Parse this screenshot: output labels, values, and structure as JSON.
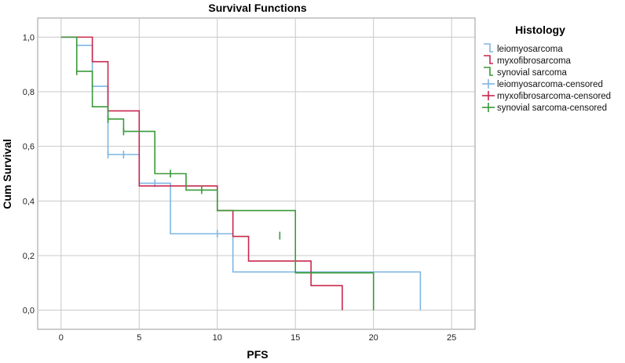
{
  "chart_data": {
    "type": "line",
    "title": "Survival Functions",
    "xlabel": "PFS",
    "ylabel": "Cum Survival",
    "xlim": [
      -1.5,
      26.5
    ],
    "ylim": [
      -0.07,
      1.07
    ],
    "x_ticks": [
      0,
      5,
      10,
      15,
      20,
      25
    ],
    "y_ticks": [
      0.0,
      0.2,
      0.4,
      0.6,
      0.8,
      1.0
    ],
    "x_tick_labels": [
      "0",
      "5",
      "10",
      "15",
      "20",
      "25"
    ],
    "y_tick_labels": [
      "0,0",
      "0,2",
      "0,4",
      "0,6",
      "0,8",
      "1,0"
    ],
    "grid": true,
    "legend": {
      "title": "Histology",
      "placement": "right",
      "entries": [
        "leiomyosarcoma",
        "myxofibrosarcoma",
        "synovial sarcoma",
        "leiomyosarcoma-censored",
        "myxofibrosarcoma-censored",
        "synovial sarcoma-censored"
      ]
    },
    "series": [
      {
        "name": "leiomyosarcoma",
        "color": "#7fb6e3",
        "steps": [
          [
            0,
            1.0
          ],
          [
            1,
            0.97
          ],
          [
            2,
            0.82
          ],
          [
            3,
            0.57
          ],
          [
            5,
            0.465
          ],
          [
            7,
            0.28
          ],
          [
            11,
            0.14
          ],
          [
            23,
            0.0
          ]
        ],
        "censored": [
          [
            1,
            0.97
          ],
          [
            2,
            0.82
          ],
          [
            3,
            0.57
          ],
          [
            4,
            0.57
          ],
          [
            6,
            0.465
          ],
          [
            10,
            0.28
          ]
        ]
      },
      {
        "name": "myxofibrosarcoma",
        "color": "#c8284e",
        "steps": [
          [
            0,
            1.0
          ],
          [
            2,
            0.91
          ],
          [
            3,
            0.73
          ],
          [
            5,
            0.455
          ],
          [
            10,
            0.365
          ],
          [
            11,
            0.27
          ],
          [
            12,
            0.18
          ],
          [
            16,
            0.09
          ],
          [
            18,
            0.0
          ]
        ],
        "censored": []
      },
      {
        "name": "synovial sarcoma",
        "color": "#3a9a3a",
        "steps": [
          [
            0,
            1.0
          ],
          [
            1,
            0.875
          ],
          [
            2,
            0.745
          ],
          [
            3,
            0.7
          ],
          [
            4,
            0.655
          ],
          [
            6,
            0.5
          ],
          [
            8,
            0.44
          ],
          [
            10,
            0.365
          ],
          [
            15,
            0.137
          ],
          [
            20,
            0.0
          ]
        ],
        "censored": [
          [
            1,
            0.875
          ],
          [
            3,
            0.7
          ],
          [
            4,
            0.655
          ],
          [
            7,
            0.5
          ],
          [
            9,
            0.44
          ],
          [
            14,
            0.273
          ]
        ]
      }
    ]
  }
}
